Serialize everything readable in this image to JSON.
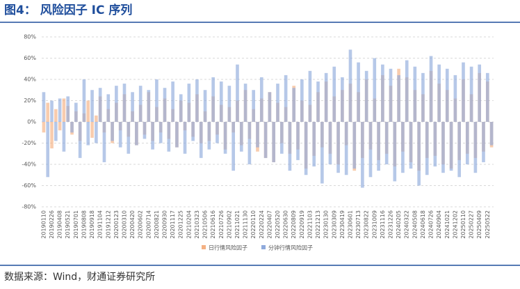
{
  "chart_data": {
    "type": "bar",
    "title": "图4： 风险因子 IC 序列",
    "source": "数据来源：Wind，财通证券研究所",
    "categories": [
      "20190110",
      null,
      "20190226",
      null,
      "20190408",
      null,
      "20190521",
      null,
      "20190701",
      null,
      "20190808",
      null,
      "20190918",
      null,
      "20191104",
      null,
      "20191212",
      null,
      "20200123",
      null,
      "20200310",
      null,
      "20200420",
      null,
      "20200602",
      null,
      "20200714",
      null,
      "20200821",
      null,
      "20200930",
      null,
      "20201117",
      null,
      "20201225",
      null,
      "20210204",
      null,
      "20210323",
      null,
      "20210506",
      null,
      "20210616",
      null,
      "20210726",
      null,
      "20210902",
      null,
      "20211021",
      null,
      "20211130",
      null,
      "20220110",
      null,
      "20220224",
      null,
      "20220407",
      null,
      "20220520",
      null,
      "20220630",
      null,
      "20220809",
      null,
      "20220919",
      null,
      "20221103",
      null,
      "20221213",
      null,
      "20230130",
      null,
      "20230309",
      null,
      "20230419",
      null,
      "20230601",
      null,
      "20230713",
      null,
      "20230822",
      null,
      "20231009",
      null,
      "20231116",
      null,
      "20231226",
      null,
      "20240205",
      null,
      "20240322",
      null,
      "20240508",
      null,
      "20240618",
      null,
      "20240726",
      null,
      "20240904",
      null,
      "20241021",
      null,
      "20241202",
      null,
      "20250110",
      null,
      "20250227",
      null,
      "20250409",
      null,
      "20250522",
      null
    ],
    "series": [
      {
        "name": "日行情风险因子",
        "color": "#f4b183",
        "values": [
          -10,
          18,
          -25,
          12,
          -8,
          22,
          15,
          -12,
          10,
          -18,
          8,
          20,
          -15,
          6,
          24,
          -10,
          12,
          -20,
          18,
          -8,
          26,
          -14,
          10,
          -22,
          16,
          -12,
          28,
          -18,
          14,
          -10,
          22,
          -16,
          12,
          -24,
          20,
          -8,
          18,
          -14,
          26,
          -20,
          10,
          -18,
          24,
          -12,
          16,
          -26,
          14,
          -10,
          20,
          -22,
          30,
          -16,
          12,
          -28,
          22,
          -34,
          28,
          -38,
          18,
          -20,
          14,
          -30,
          34,
          -26,
          20,
          -44,
          16,
          -32,
          28,
          -24,
          38,
          -30,
          24,
          -40,
          30,
          -22,
          36,
          -46,
          28,
          -34,
          40,
          -26,
          22,
          -36,
          44,
          -30,
          34,
          -42,
          50,
          -28,
          42,
          -38,
          30,
          -46,
          26,
          -34,
          48,
          -32,
          36,
          -40,
          30,
          -44,
          22,
          -36,
          40,
          -30,
          26,
          -34,
          46,
          -28,
          38,
          -24
        ]
      },
      {
        "name": "分钟行情风险因子",
        "color": "#8faadc",
        "values": [
          28,
          -52,
          20,
          -18,
          22,
          -28,
          24,
          -10,
          18,
          -34,
          40,
          -22,
          30,
          -20,
          32,
          -38,
          26,
          -18,
          34,
          -24,
          36,
          -30,
          28,
          -22,
          34,
          -16,
          30,
          -26,
          40,
          -20,
          32,
          -28,
          38,
          -24,
          26,
          -30,
          36,
          -18,
          40,
          -34,
          30,
          -26,
          42,
          -20,
          38,
          -30,
          34,
          -46,
          54,
          -28,
          36,
          -40,
          30,
          -24,
          42,
          -34,
          28,
          -38,
          36,
          -30,
          44,
          -46,
          32,
          -36,
          40,
          -50,
          48,
          -42,
          38,
          -58,
          46,
          -40,
          52,
          -48,
          42,
          -50,
          68,
          -44,
          56,
          -62,
          48,
          -52,
          60,
          -46,
          54,
          -40,
          50,
          -56,
          44,
          -48,
          58,
          -44,
          52,
          -60,
          46,
          -50,
          62,
          -42,
          54,
          -48,
          50,
          -46,
          44,
          -52,
          56,
          -40,
          52,
          -48,
          54,
          -38,
          46,
          -22
        ]
      }
    ],
    "ylim": [
      -80,
      80
    ],
    "yticks": [
      {
        "value": -80,
        "label": "-80%"
      },
      {
        "value": -60,
        "label": "-60%"
      },
      {
        "value": -40,
        "label": "-40%"
      },
      {
        "value": -20,
        "label": "-20%"
      },
      {
        "value": 0,
        "label": "0%"
      },
      {
        "value": 20,
        "label": "20%"
      },
      {
        "value": 40,
        "label": "40%"
      },
      {
        "value": 60,
        "label": "60%"
      },
      {
        "value": 80,
        "label": "80%"
      }
    ],
    "grid": true
  }
}
